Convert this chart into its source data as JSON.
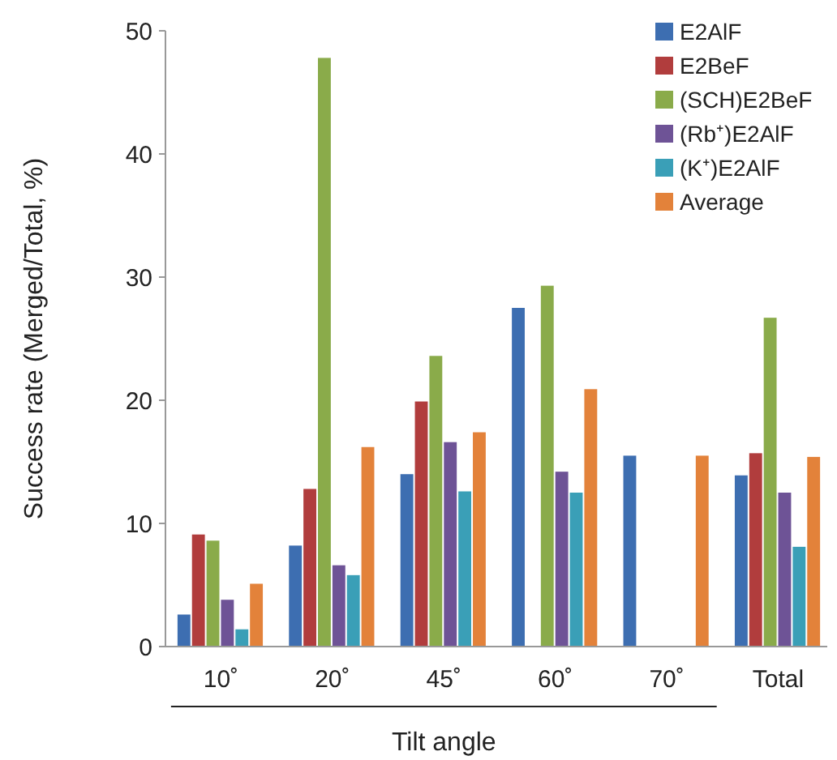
{
  "chart_data": {
    "type": "bar",
    "ylabel": "Success rate (Merged/Total, %)",
    "xlabel": "Tilt angle",
    "categories": [
      "10˚",
      "20˚",
      "45˚",
      "60˚",
      "70˚",
      "Total"
    ],
    "series": [
      {
        "name": "E2AlF",
        "color": "#3d6eb1",
        "values": [
          2.6,
          8.2,
          14.0,
          27.5,
          15.5,
          13.9
        ]
      },
      {
        "name": "E2BeF",
        "color": "#b13d3d",
        "values": [
          9.1,
          12.8,
          19.9,
          null,
          null,
          15.7
        ]
      },
      {
        "name": "(SCH)E2BeF",
        "color": "#8aab4a",
        "values": [
          8.6,
          47.8,
          23.6,
          29.3,
          null,
          26.7
        ]
      },
      {
        "name": "(Rb⁺)E2AlF",
        "color": "#6e5396",
        "values": [
          3.8,
          6.6,
          16.6,
          14.2,
          null,
          12.5
        ]
      },
      {
        "name": "(K⁺)E2AlF",
        "color": "#3a9fb7",
        "values": [
          1.4,
          5.8,
          12.6,
          12.5,
          null,
          8.1
        ]
      },
      {
        "name": "Average",
        "color": "#e3823a",
        "values": [
          5.1,
          16.2,
          17.4,
          20.9,
          15.5,
          15.4
        ]
      }
    ],
    "ylim": [
      0,
      50
    ],
    "yticks": [
      0,
      10,
      20,
      30,
      40,
      50
    ],
    "grid": false,
    "legend": "top right"
  }
}
